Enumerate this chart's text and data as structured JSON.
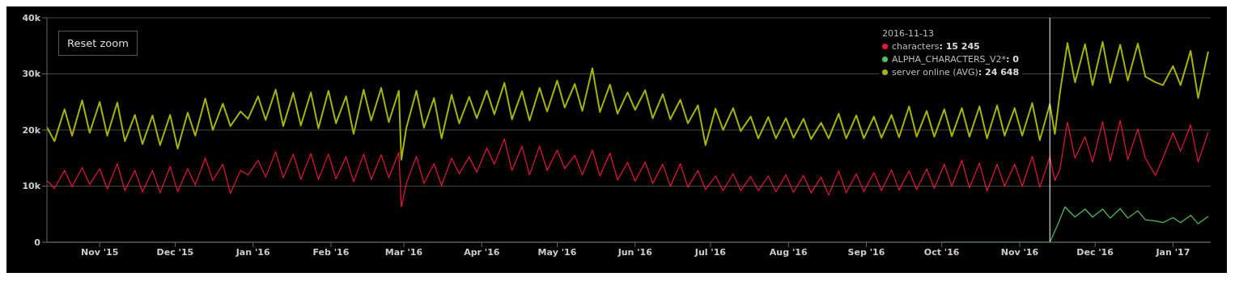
{
  "chart_data": {
    "type": "line",
    "x": [
      "2015-10-11",
      "2015-10-14",
      "2015-10-18",
      "2015-10-21",
      "2015-10-25",
      "2015-10-28",
      "2015-11-01",
      "2015-11-04",
      "2015-11-08",
      "2015-11-11",
      "2015-11-15",
      "2015-11-18",
      "2015-11-22",
      "2015-11-25",
      "2015-11-29",
      "2015-12-02",
      "2015-12-06",
      "2015-12-09",
      "2015-12-13",
      "2015-12-16",
      "2015-12-20",
      "2015-12-23",
      "2015-12-27",
      "2015-12-30",
      "2016-01-03",
      "2016-01-06",
      "2016-01-10",
      "2016-01-13",
      "2016-01-17",
      "2016-01-20",
      "2016-01-24",
      "2016-01-27",
      "2016-01-31",
      "2016-02-03",
      "2016-02-07",
      "2016-02-10",
      "2016-02-14",
      "2016-02-17",
      "2016-02-21",
      "2016-02-24",
      "2016-02-28",
      "2016-02-29",
      "2016-03-02",
      "2016-03-06",
      "2016-03-09",
      "2016-03-13",
      "2016-03-16",
      "2016-03-20",
      "2016-03-23",
      "2016-03-27",
      "2016-03-30",
      "2016-04-03",
      "2016-04-06",
      "2016-04-10",
      "2016-04-13",
      "2016-04-17",
      "2016-04-20",
      "2016-04-24",
      "2016-04-27",
      "2016-05-01",
      "2016-05-04",
      "2016-05-08",
      "2016-05-11",
      "2016-05-15",
      "2016-05-18",
      "2016-05-22",
      "2016-05-25",
      "2016-05-29",
      "2016-06-01",
      "2016-06-05",
      "2016-06-08",
      "2016-06-12",
      "2016-06-15",
      "2016-06-19",
      "2016-06-22",
      "2016-06-26",
      "2016-06-29",
      "2016-07-03",
      "2016-07-06",
      "2016-07-10",
      "2016-07-13",
      "2016-07-17",
      "2016-07-20",
      "2016-07-24",
      "2016-07-27",
      "2016-07-31",
      "2016-08-03",
      "2016-08-07",
      "2016-08-10",
      "2016-08-14",
      "2016-08-17",
      "2016-08-21",
      "2016-08-24",
      "2016-08-28",
      "2016-08-31",
      "2016-09-04",
      "2016-09-07",
      "2016-09-11",
      "2016-09-14",
      "2016-09-18",
      "2016-09-21",
      "2016-09-25",
      "2016-09-28",
      "2016-10-02",
      "2016-10-05",
      "2016-10-09",
      "2016-10-12",
      "2016-10-16",
      "2016-10-19",
      "2016-10-23",
      "2016-10-26",
      "2016-10-30",
      "2016-11-02",
      "2016-11-06",
      "2016-11-09",
      "2016-11-13",
      "2016-11-15",
      "2016-11-17",
      "2016-11-20",
      "2016-11-23",
      "2016-11-27",
      "2016-11-30",
      "2016-12-04",
      "2016-12-07",
      "2016-12-11",
      "2016-12-14",
      "2016-12-18",
      "2016-12-21",
      "2016-12-25",
      "2016-12-28",
      "2017-01-01",
      "2017-01-04",
      "2017-01-08",
      "2017-01-11",
      "2017-01-15"
    ],
    "series": [
      {
        "name": "characters",
        "color": "#e8173a",
        "values": [
          11000,
          9600,
          12800,
          9900,
          13300,
          10300,
          13100,
          9500,
          14000,
          9200,
          12800,
          9000,
          12800,
          8800,
          13500,
          9000,
          13100,
          10200,
          15000,
          11000,
          13900,
          8700,
          12800,
          12000,
          14600,
          11600,
          16100,
          11500,
          15700,
          11200,
          15800,
          11200,
          15700,
          11300,
          15200,
          10800,
          15700,
          11200,
          15600,
          11500,
          16000,
          6300,
          10500,
          15300,
          10500,
          14000,
          10100,
          15000,
          12200,
          15200,
          12500,
          16800,
          13900,
          18400,
          12800,
          17100,
          12000,
          17100,
          12800,
          16400,
          13100,
          15500,
          12000,
          16400,
          11800,
          15900,
          11100,
          14200,
          10900,
          14300,
          10500,
          13900,
          10000,
          14000,
          9800,
          12800,
          9400,
          11800,
          9200,
          12200,
          9200,
          11700,
          9200,
          11800,
          9000,
          12000,
          8900,
          11900,
          8800,
          11600,
          8400,
          12700,
          8800,
          12200,
          9000,
          12400,
          9200,
          12900,
          9300,
          12700,
          9400,
          13100,
          9600,
          13900,
          10000,
          14600,
          9700,
          14100,
          9100,
          13900,
          10000,
          13900,
          10000,
          15300,
          9800,
          15200,
          11000,
          13000,
          21400,
          15000,
          18800,
          14300,
          21500,
          14500,
          21700,
          14700,
          20200,
          15000,
          11900,
          15000,
          19500,
          16200,
          20900,
          14300,
          19600
        ]
      },
      {
        "name": "ALPHA_CHARACTERS_V2*",
        "color": "#4fc25a",
        "x": [
          "2016-10-01",
          "2016-11-13",
          "2016-11-16",
          "2016-11-19",
          "2016-11-23",
          "2016-11-27",
          "2016-11-30",
          "2016-12-04",
          "2016-12-07",
          "2016-12-11",
          "2016-12-14",
          "2016-12-18",
          "2016-12-21",
          "2016-12-25",
          "2016-12-28",
          "2017-01-01",
          "2017-01-04",
          "2017-01-08",
          "2017-01-11",
          "2017-01-15"
        ],
        "values": [
          0,
          0,
          3000,
          6300,
          4500,
          5900,
          4500,
          5900,
          4300,
          6000,
          4300,
          5600,
          4000,
          3800,
          3500,
          4400,
          3500,
          4800,
          3300,
          4600
        ]
      },
      {
        "name": "server online (AVG)",
        "color": "#a8b400",
        "values": [
          20500,
          18000,
          23700,
          19000,
          25300,
          19500,
          25000,
          19000,
          24900,
          18000,
          22700,
          17500,
          22600,
          17300,
          22700,
          16700,
          23100,
          19000,
          25600,
          20000,
          24700,
          20700,
          23300,
          22000,
          26000,
          21800,
          27200,
          20700,
          26600,
          20800,
          26700,
          20300,
          27000,
          21200,
          26000,
          19300,
          27200,
          21700,
          27500,
          21400,
          27000,
          14700,
          20400,
          27000,
          20400,
          25700,
          18500,
          26300,
          21200,
          25900,
          22100,
          27000,
          22800,
          28400,
          21900,
          26900,
          21700,
          27500,
          23300,
          28800,
          24000,
          28200,
          23400,
          31000,
          23200,
          28100,
          22900,
          26700,
          23600,
          27100,
          22100,
          26400,
          21900,
          25400,
          21200,
          24400,
          17300,
          23800,
          20000,
          23900,
          19800,
          22400,
          18500,
          22300,
          18500,
          22100,
          18600,
          22000,
          18400,
          21300,
          18500,
          22900,
          18500,
          22600,
          18500,
          22400,
          18600,
          22700,
          18700,
          24200,
          18800,
          23400,
          18800,
          23700,
          18900,
          23900,
          18800,
          24200,
          18500,
          24400,
          19000,
          23900,
          19000,
          24800,
          18200,
          24600,
          19300,
          26600,
          35500,
          28500,
          35300,
          28000,
          35700,
          28400,
          35200,
          28800,
          35400,
          29500,
          28500,
          28000,
          31400,
          28000,
          34100,
          25700,
          34000
        ]
      }
    ],
    "xlim": [
      "2015-10-11",
      "2017-01-16"
    ],
    "xticks": [
      {
        "value": "2015-11-01",
        "label": "Nov '15"
      },
      {
        "value": "2015-12-01",
        "label": "Dec '15"
      },
      {
        "value": "2016-01-01",
        "label": "Jan '16"
      },
      {
        "value": "2016-02-01",
        "label": "Feb '16"
      },
      {
        "value": "2016-03-01",
        "label": "Mar '16"
      },
      {
        "value": "2016-04-01",
        "label": "Apr '16"
      },
      {
        "value": "2016-05-01",
        "label": "May '16"
      },
      {
        "value": "2016-06-01",
        "label": "Jun '16"
      },
      {
        "value": "2016-07-01",
        "label": "Jul '16"
      },
      {
        "value": "2016-08-01",
        "label": "Aug '16"
      },
      {
        "value": "2016-09-01",
        "label": "Sep '16"
      },
      {
        "value": "2016-10-01",
        "label": "Oct '16"
      },
      {
        "value": "2016-11-01",
        "label": "Nov '16"
      },
      {
        "value": "2016-12-01",
        "label": "Dec '16"
      },
      {
        "value": "2017-01-01",
        "label": "Jan '17"
      }
    ],
    "ylim": [
      0,
      40000
    ],
    "yticks": [
      0,
      {
        "value": 10000,
        "label": "10k"
      },
      {
        "value": 20000,
        "label": "20k"
      },
      {
        "value": 30000,
        "label": "30k"
      },
      {
        "value": 40000,
        "label": "40k"
      }
    ],
    "grid": "y",
    "marker": "none",
    "line_style": "solid",
    "legend": "top right",
    "ref_lines": [
      {
        "axis": "x",
        "value": "2016-11-13",
        "color": "#ffffff"
      }
    ],
    "annotations": [
      "Reset zoom",
      "2016-11-13",
      ": 15 245",
      ": 0",
      ": 24 648"
    ]
  }
}
